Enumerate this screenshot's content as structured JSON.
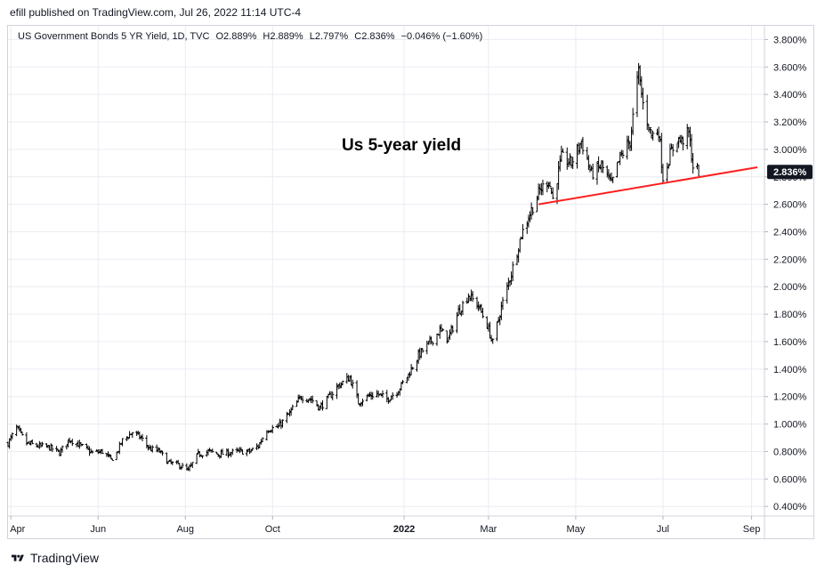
{
  "header": {
    "published_by": "efill published on TradingView.com, Jul 26, 2022 11:14 UTC-4"
  },
  "legend": {
    "symbol": "US Government Bonds 5 YR Yield, 1D, TVC",
    "open": "O2.889%",
    "high": "H2.889%",
    "low": "L2.797%",
    "close": "C2.836%",
    "change": "−0.046% (−1.60%)"
  },
  "annotation": {
    "text": "Us 5-year yield"
  },
  "footer": {
    "brand": "TradingView"
  },
  "colors": {
    "price": "#000000",
    "trendline": "#ff1e1e",
    "grid": "#e9ecf2",
    "last_price_badge": "#131722"
  },
  "chart_data": {
    "type": "ohlc",
    "title": "US Government Bonds 5 YR Yield, 1D, TVC",
    "ylim": [
      0.33,
      3.9
    ],
    "y_ticks": [
      "0.400%",
      "0.600%",
      "0.800%",
      "1.000%",
      "1.200%",
      "1.400%",
      "1.600%",
      "1.800%",
      "2.000%",
      "2.200%",
      "2.400%",
      "2.600%",
      "2.800%",
      "3.000%",
      "3.200%",
      "3.400%",
      "3.600%",
      "3.800%"
    ],
    "x_ticks": [
      "Apr",
      "Jun",
      "Aug",
      "Oct",
      "2022",
      "Mar",
      "May",
      "Jul",
      "Sep"
    ],
    "x_range": [
      "2021-03-30",
      "2022-09-10"
    ],
    "grid": true,
    "last_price": "2.836%",
    "keypoints": [
      [
        "2021-03-30",
        0.86
      ],
      [
        "2021-04-05",
        0.97
      ],
      [
        "2021-04-12",
        0.86
      ],
      [
        "2021-04-20",
        0.84
      ],
      [
        "2021-04-28",
        0.83
      ],
      [
        "2021-05-05",
        0.79
      ],
      [
        "2021-05-12",
        0.89
      ],
      [
        "2021-05-20",
        0.84
      ],
      [
        "2021-05-28",
        0.79
      ],
      [
        "2021-06-04",
        0.8
      ],
      [
        "2021-06-10",
        0.74
      ],
      [
        "2021-06-14",
        0.79
      ],
      [
        "2021-06-18",
        0.88
      ],
      [
        "2021-06-25",
        0.94
      ],
      [
        "2021-07-01",
        0.9
      ],
      [
        "2021-07-07",
        0.82
      ],
      [
        "2021-07-14",
        0.8
      ],
      [
        "2021-07-20",
        0.72
      ],
      [
        "2021-07-28",
        0.7
      ],
      [
        "2021-08-03",
        0.66
      ],
      [
        "2021-08-10",
        0.78
      ],
      [
        "2021-08-18",
        0.8
      ],
      [
        "2021-08-24",
        0.78
      ],
      [
        "2021-08-31",
        0.79
      ],
      [
        "2021-09-08",
        0.8
      ],
      [
        "2021-09-15",
        0.8
      ],
      [
        "2021-09-21",
        0.84
      ],
      [
        "2021-09-27",
        0.96
      ],
      [
        "2021-10-05",
        0.98
      ],
      [
        "2021-10-13",
        1.08
      ],
      [
        "2021-10-21",
        1.2
      ],
      [
        "2021-10-28",
        1.18
      ],
      [
        "2021-11-03",
        1.12
      ],
      [
        "2021-11-10",
        1.2
      ],
      [
        "2021-11-16",
        1.28
      ],
      [
        "2021-11-24",
        1.34
      ],
      [
        "2021-11-30",
        1.16
      ],
      [
        "2021-12-06",
        1.2
      ],
      [
        "2021-12-13",
        1.22
      ],
      [
        "2021-12-20",
        1.18
      ],
      [
        "2021-12-28",
        1.25
      ],
      [
        "2022-01-04",
        1.36
      ],
      [
        "2022-01-11",
        1.5
      ],
      [
        "2022-01-18",
        1.58
      ],
      [
        "2022-01-26",
        1.68
      ],
      [
        "2022-02-01",
        1.62
      ],
      [
        "2022-02-08",
        1.82
      ],
      [
        "2022-02-15",
        1.94
      ],
      [
        "2022-02-22",
        1.86
      ],
      [
        "2022-02-28",
        1.72
      ],
      [
        "2022-03-04",
        1.59
      ],
      [
        "2022-03-10",
        1.85
      ],
      [
        "2022-03-17",
        2.1
      ],
      [
        "2022-03-24",
        2.38
      ],
      [
        "2022-03-31",
        2.56
      ],
      [
        "2022-04-06",
        2.7
      ],
      [
        "2022-04-12",
        2.78
      ],
      [
        "2022-04-15",
        2.64
      ],
      [
        "2022-04-21",
        2.94
      ],
      [
        "2022-04-28",
        2.9
      ],
      [
        "2022-05-05",
        3.06
      ],
      [
        "2022-05-12",
        2.82
      ],
      [
        "2022-05-19",
        2.88
      ],
      [
        "2022-05-26",
        2.74
      ],
      [
        "2022-06-01",
        2.94
      ],
      [
        "2022-06-08",
        3.06
      ],
      [
        "2022-06-13",
        3.5
      ],
      [
        "2022-06-14",
        3.56
      ],
      [
        "2022-06-17",
        3.33
      ],
      [
        "2022-06-23",
        3.1
      ],
      [
        "2022-06-28",
        3.14
      ],
      [
        "2022-07-01",
        2.8
      ],
      [
        "2022-07-06",
        2.96
      ],
      [
        "2022-07-11",
        3.08
      ],
      [
        "2022-07-14",
        3.06
      ],
      [
        "2022-07-19",
        3.12
      ],
      [
        "2022-07-22",
        2.88
      ],
      [
        "2022-07-26",
        2.84
      ]
    ],
    "trendline": {
      "from": [
        "2022-04-05",
        2.6
      ],
      "to": [
        "2022-09-05",
        2.87
      ]
    }
  }
}
